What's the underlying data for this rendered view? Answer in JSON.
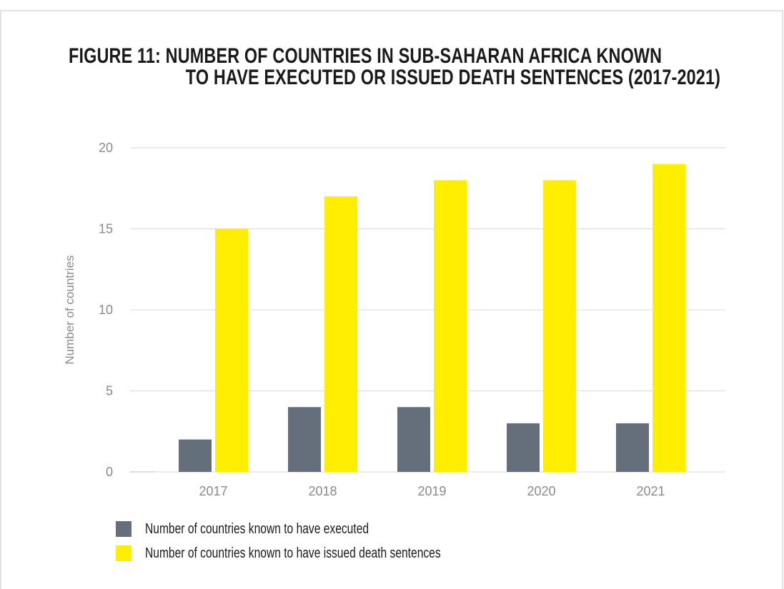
{
  "figure": {
    "title_line1": "FIGURE 11: NUMBER OF COUNTRIES IN SUB-SAHARAN AFRICA KNOWN",
    "title_line2": "TO HAVE EXECUTED OR ISSUED DEATH SENTENCES (2017-2021)"
  },
  "chart_data": {
    "type": "bar",
    "title": "FIGURE 11: NUMBER OF COUNTRIES IN SUB-SAHARAN AFRICA KNOWN TO HAVE EXECUTED OR ISSUED DEATH SENTENCES (2017-2021)",
    "xlabel": "",
    "ylabel": "Number of countries",
    "categories": [
      "2017",
      "2018",
      "2019",
      "2020",
      "2021"
    ],
    "series": [
      {
        "name": "Number of countries known to have executed",
        "values": [
          2,
          4,
          4,
          3,
          3
        ],
        "color": "#646f7b"
      },
      {
        "name": "Number of countries known to have issued death sentences",
        "values": [
          15,
          17,
          18,
          18,
          19
        ],
        "color": "#ffee00"
      }
    ],
    "ylim": [
      0,
      20
    ],
    "yticks": [
      0,
      5,
      10,
      15,
      20
    ],
    "grid": true,
    "legend": "bottom-left"
  }
}
